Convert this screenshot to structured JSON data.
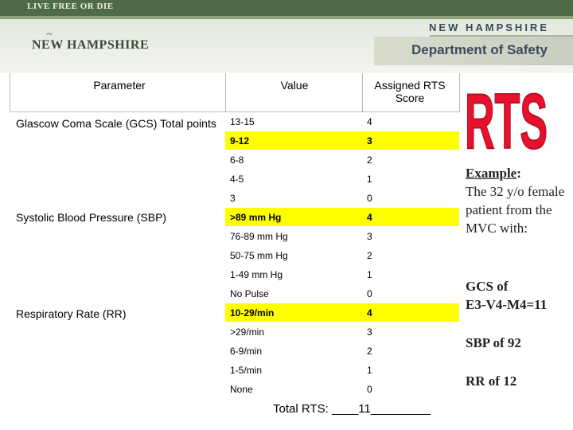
{
  "header": {
    "motto": "LIVE FREE OR DIE",
    "state_logo": "NEW HAMPSHIRE",
    "state": "NEW HAMPSHIRE",
    "department": "Department of Safety"
  },
  "table": {
    "col_parameter": "Parameter",
    "col_value": "Value",
    "col_score": "Assigned RTS Score",
    "groups": [
      {
        "parameter": "Glascow Coma Scale (GCS) Total points",
        "rows": [
          {
            "value": "13-15",
            "score": "4",
            "highlight": false
          },
          {
            "value": "9-12",
            "score": "3",
            "highlight": true
          },
          {
            "value": "6-8",
            "score": "2",
            "highlight": false
          },
          {
            "value": "4-5",
            "score": "1",
            "highlight": false
          },
          {
            "value": "3",
            "score": "0",
            "highlight": false
          }
        ]
      },
      {
        "parameter": "Systolic Blood Pressure (SBP)",
        "rows": [
          {
            "value": ">89 mm Hg",
            "score": "4",
            "highlight": true
          },
          {
            "value": "76-89 mm Hg",
            "score": "3",
            "highlight": false
          },
          {
            "value": "50-75 mm Hg",
            "score": "2",
            "highlight": false
          },
          {
            "value": "1-49 mm Hg",
            "score": "1",
            "highlight": false
          },
          {
            "value": "No Pulse",
            "score": "0",
            "highlight": false
          }
        ]
      },
      {
        "parameter": "Respiratory Rate (RR)",
        "rows": [
          {
            "value": "10-29/min",
            "score": "4",
            "highlight": true
          },
          {
            "value": ">29/min",
            "score": "3",
            "highlight": false
          },
          {
            "value": "6-9/min",
            "score": "2",
            "highlight": false
          },
          {
            "value": "1-5/min",
            "score": "1",
            "highlight": false
          },
          {
            "value": "None",
            "score": "0",
            "highlight": false
          }
        ]
      }
    ],
    "total": "Total RTS: ____11_________"
  },
  "logo_text": "RTS",
  "side": {
    "example_label": "Example",
    "example_colon": ":",
    "example_text": "The 32 y/o female patient from the MVC with:",
    "gcs_line1": "GCS of",
    "gcs_line2": "E3-V4-M4=11",
    "sbp": "SBP of 92",
    "rr": "RR of 12"
  },
  "colors": {
    "highlight": "#ffff00",
    "header_band": "#4f6b4a",
    "logo_red": "#e8112d"
  }
}
